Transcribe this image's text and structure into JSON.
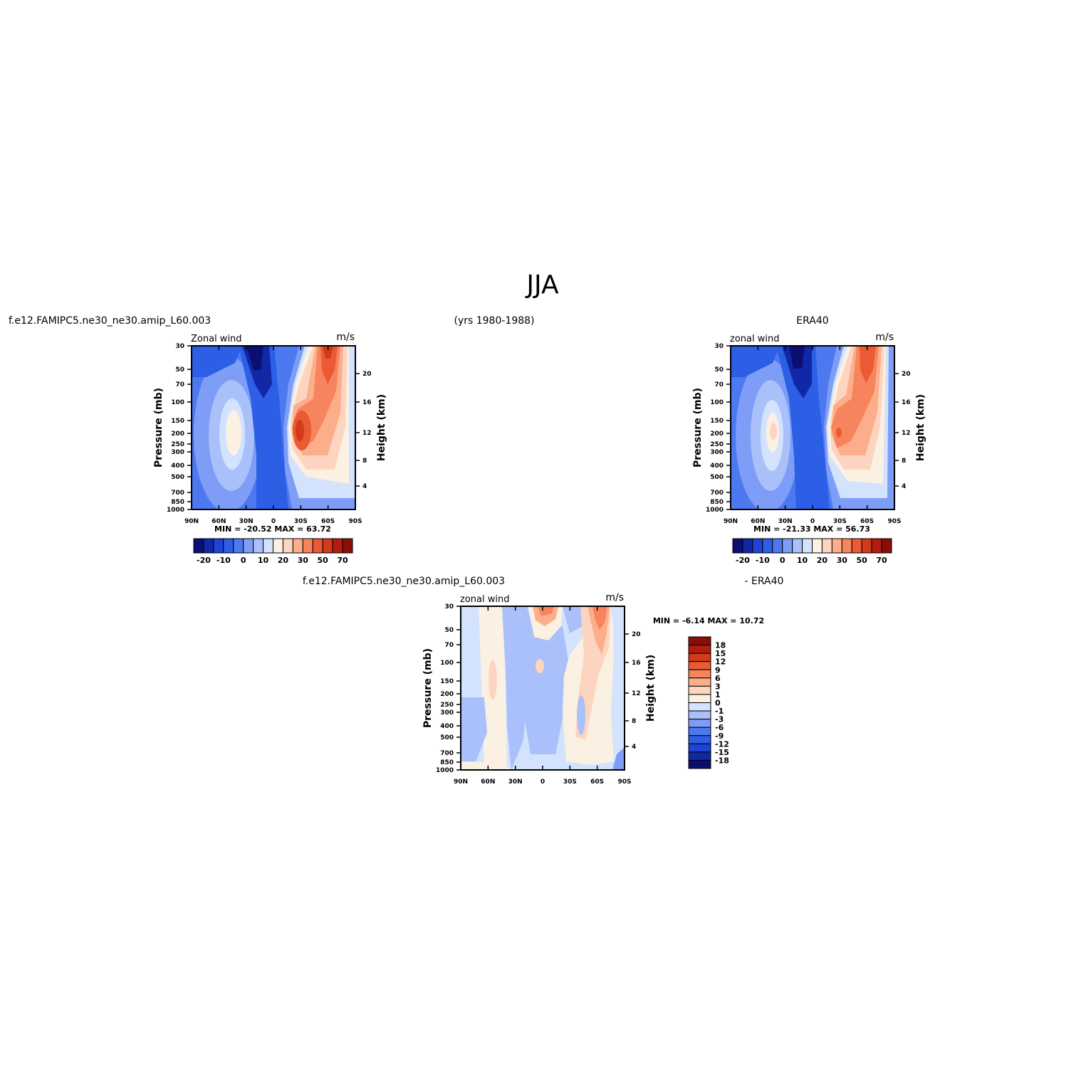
{
  "page": {
    "title": "JJA",
    "left_run": "f.e12.FAMIPC5.ne30_ne30.amip_L60.003",
    "years": "(yrs 1980-1988)",
    "right_run": "ERA40",
    "diff_left": "f.e12.FAMIPC5.ne30_ne30.amip_L60.003",
    "diff_right": "- ERA40"
  },
  "colors": {
    "main_scale": [
      "#0b0f72",
      "#1128a6",
      "#1f43d2",
      "#2d5ee6",
      "#4d79f0",
      "#7d9df6",
      "#a9c0fa",
      "#d3e2fd",
      "#fbf1e2",
      "#fdd4bf",
      "#fcae8b",
      "#f6855e",
      "#ea5a33",
      "#d23a1c",
      "#b31d10",
      "#8c0d08"
    ],
    "diff_scale": [
      "#0b0f72",
      "#1128a6",
      "#1f43d2",
      "#2d5ee6",
      "#4d79f0",
      "#7d9df6",
      "#a9c0fa",
      "#d3e2fd",
      "#fbf1e2",
      "#fdd4bf",
      "#fcae8b",
      "#f6855e",
      "#ea5a33",
      "#d23a1c",
      "#b31d10",
      "#8c0d08"
    ]
  },
  "chart_data": [
    {
      "type": "heatmap",
      "panel": "model",
      "title": "Zonal wind",
      "units": "m/s",
      "ylabel": "Pressure (mb)",
      "y2label": "Height (km)",
      "x_ticks": [
        "90N",
        "60N",
        "30N",
        "0",
        "30S",
        "60S",
        "90S"
      ],
      "y_ticks": [
        "30",
        "50",
        "70",
        "100",
        "150",
        "200",
        "250",
        "300",
        "400",
        "500",
        "700",
        "850",
        "1000"
      ],
      "y2_ticks": [
        "20",
        "16",
        "12",
        "8",
        "4"
      ],
      "min_label": "MIN =",
      "max_label": "MAX =",
      "min": "-20.52",
      "max": "63.72",
      "colorbar_labels": [
        "-20",
        "-10",
        "0",
        "10",
        "20",
        "30",
        "50",
        "70"
      ]
    },
    {
      "type": "heatmap",
      "panel": "obs",
      "title": "zonal wind",
      "units": "m/s",
      "ylabel": "Pressure (mb)",
      "y2label": "Height (km)",
      "x_ticks": [
        "90N",
        "60N",
        "30N",
        "0",
        "30S",
        "60S",
        "90S"
      ],
      "y_ticks": [
        "30",
        "50",
        "70",
        "100",
        "150",
        "200",
        "250",
        "300",
        "400",
        "500",
        "700",
        "850",
        "1000"
      ],
      "y2_ticks": [
        "20",
        "16",
        "12",
        "8",
        "4"
      ],
      "min_label": "MIN =",
      "max_label": "MAX =",
      "min": "-21.33",
      "max": "56.73",
      "colorbar_labels": [
        "-20",
        "-10",
        "0",
        "10",
        "20",
        "30",
        "50",
        "70"
      ]
    },
    {
      "type": "heatmap",
      "panel": "difference",
      "title": "zonal wind",
      "units": "m/s",
      "ylabel": "Pressure (mb)",
      "y2label": "Height (km)",
      "x_ticks": [
        "90N",
        "60N",
        "30N",
        "0",
        "30S",
        "60S",
        "90S"
      ],
      "y_ticks": [
        "30",
        "50",
        "70",
        "100",
        "150",
        "200",
        "250",
        "300",
        "400",
        "500",
        "700",
        "850",
        "1000"
      ],
      "y2_ticks": [
        "20",
        "16",
        "12",
        "8",
        "4"
      ],
      "min_label": "MIN =",
      "max_label": "MAX =",
      "min": "-6.14",
      "max": "10.72",
      "colorbar_labels": [
        "18",
        "15",
        "12",
        "9",
        "6",
        "3",
        "1",
        "0",
        "-1",
        "-3",
        "-6",
        "-9",
        "-12",
        "-15",
        "-18"
      ]
    }
  ]
}
